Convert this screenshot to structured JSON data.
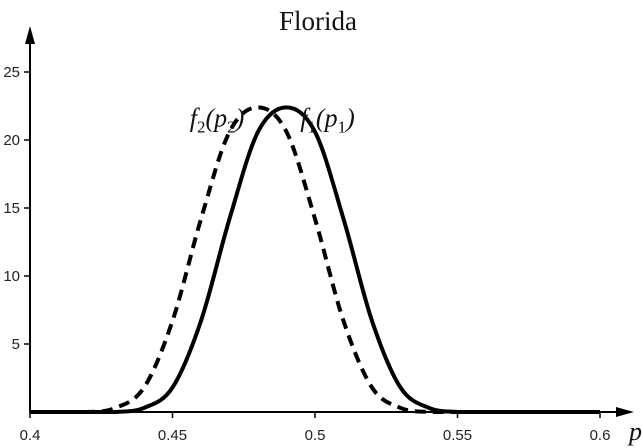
{
  "chart_data": {
    "type": "line",
    "title": "Florida",
    "xlabel": "p",
    "ylabel": "",
    "xlim": [
      0.4,
      0.61
    ],
    "ylim": [
      0,
      27
    ],
    "xticks": [
      0.4,
      0.45,
      0.5,
      0.55,
      0.6
    ],
    "yticks": [
      5,
      10,
      15,
      20,
      25
    ],
    "xtick_labels": [
      "0.4",
      "0.45",
      "0.5",
      "0.55",
      "0.6"
    ],
    "ytick_labels": [
      "5",
      "10",
      "15",
      "20",
      "25"
    ],
    "grid": false,
    "legend": "none",
    "x": [
      0.4,
      0.42,
      0.43,
      0.44,
      0.45,
      0.46,
      0.47,
      0.48,
      0.49,
      0.5,
      0.51,
      0.52,
      0.53,
      0.54,
      0.55,
      0.56,
      0.6
    ],
    "series": [
      {
        "name_parts": {
          "f": "f",
          "sub1": "1",
          "arg": "p",
          "sub2": "1"
        },
        "style": "solid",
        "color": "#000000",
        "values": [
          0.0,
          0.0,
          0.0,
          0.3,
          1.8,
          6.7,
          14.2,
          20.6,
          22.4,
          20.6,
          14.2,
          6.7,
          1.8,
          0.3,
          0.0,
          0.0,
          0.0
        ]
      },
      {
        "name_parts": {
          "f": "f",
          "sub1": "2",
          "arg": "p",
          "sub2": "2"
        },
        "style": "dashed",
        "color": "#000000",
        "values": [
          0.0,
          0.0,
          0.3,
          1.8,
          6.7,
          14.2,
          20.6,
          22.4,
          20.6,
          14.2,
          6.7,
          1.8,
          0.3,
          0.0,
          0.0,
          0.0,
          0.0
        ]
      }
    ]
  }
}
